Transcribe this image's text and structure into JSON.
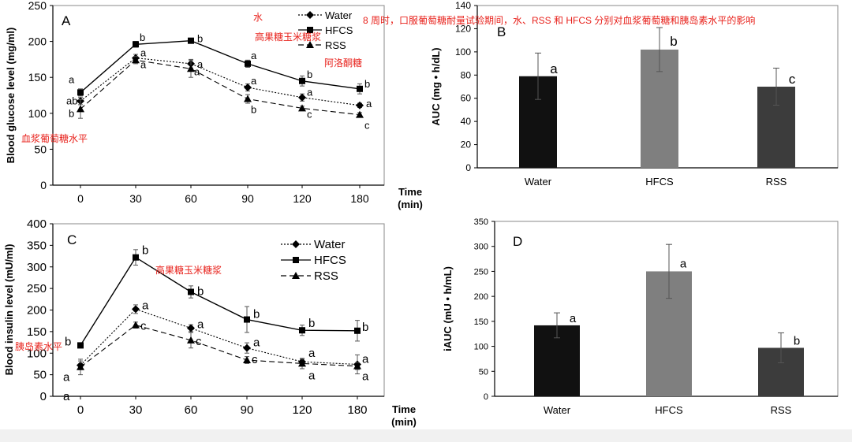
{
  "annotations": {
    "caption": "8 周时，口服葡萄糖耐量试验期间，水、RSS 和 HFCS 分别对血浆葡萄糖和胰岛素水平的影响",
    "water_cn": "水",
    "hfcs_cn_a": "高果糖玉米糖浆",
    "rss_cn": "阿洛酮糖",
    "glucose_cn": "血浆葡萄糖水平",
    "hfcs_cn_c": "高果糖玉米糖浆",
    "insulin_cn": "胰岛素水平"
  },
  "colors": {
    "water": "#111111",
    "hfcs": "#7f7f7f",
    "rss": "#3c3c3c",
    "annotation": "#e8221c",
    "axis": "#000000"
  },
  "chart_data": [
    {
      "panel": "A",
      "type": "line",
      "x": [
        0,
        30,
        60,
        90,
        120,
        180
      ],
      "xticklabels": [
        "0",
        "30",
        "60",
        "90",
        "120",
        "180"
      ],
      "xlabel": "Time\n(min)",
      "ylabel": "Blood glucose level (mg/ml)",
      "ylim": [
        0,
        250
      ],
      "yticks": [
        0,
        50,
        100,
        150,
        200,
        250
      ],
      "legend_position": "top-right",
      "series": [
        {
          "name": "Water",
          "marker": "diamond",
          "line": "dotted",
          "values": [
            117,
            177,
            169,
            136,
            122,
            111
          ],
          "err": [
            5,
            5,
            6,
            5,
            5,
            3
          ],
          "letters": [
            "ab",
            "a",
            "a",
            "a",
            "a",
            "a"
          ]
        },
        {
          "name": "HFCS",
          "marker": "square",
          "line": "solid",
          "values": [
            129,
            196,
            201,
            169,
            145,
            134
          ],
          "err": [
            5,
            4,
            3,
            5,
            7,
            7
          ],
          "letters": [
            "a",
            "b",
            "b",
            "a",
            "b",
            "b"
          ]
        },
        {
          "name": "RSS",
          "marker": "triangle",
          "line": "dashed",
          "values": [
            106,
            174,
            162,
            120,
            107,
            98
          ],
          "err": [
            13,
            5,
            12,
            6,
            3,
            3
          ],
          "letters": [
            "b",
            "a",
            "a",
            "b",
            "c",
            "c"
          ]
        }
      ]
    },
    {
      "panel": "B",
      "type": "bar",
      "categories": [
        "Water",
        "HFCS",
        "RSS"
      ],
      "values": [
        79,
        102,
        70
      ],
      "err": [
        20,
        19,
        16
      ],
      "letters": [
        "a",
        "b",
        "c"
      ],
      "ylabel": "AUC (mg • h/dL)",
      "ylim": [
        0,
        140
      ],
      "yticks": [
        0,
        20,
        40,
        60,
        80,
        100,
        120,
        140
      ]
    },
    {
      "panel": "C",
      "type": "line",
      "x": [
        0,
        30,
        60,
        90,
        120,
        180
      ],
      "xticklabels": [
        "0",
        "30",
        "60",
        "90",
        "120",
        "180"
      ],
      "xlabel": "Time\n(min)",
      "ylabel": "Blood insulin level (mU/ml)",
      "ylim": [
        0,
        400
      ],
      "yticks": [
        0,
        50,
        100,
        150,
        200,
        250,
        300,
        350,
        400
      ],
      "legend_position": "top-right",
      "series": [
        {
          "name": "Water",
          "marker": "diamond",
          "line": "dotted",
          "values": [
            72,
            202,
            158,
            112,
            80,
            74
          ],
          "err": [
            10,
            10,
            8,
            12,
            6,
            22
          ],
          "letters": [
            "a",
            "a",
            "a",
            "a",
            "a",
            "a"
          ]
        },
        {
          "name": "HFCS",
          "marker": "square",
          "line": "solid",
          "values": [
            118,
            322,
            242,
            178,
            153,
            152
          ],
          "err": [
            5,
            18,
            14,
            30,
            12,
            24
          ],
          "letters": [
            "b",
            "b",
            "b",
            "b",
            "b",
            "b"
          ]
        },
        {
          "name": "RSS",
          "marker": "triangle",
          "line": "dashed",
          "values": [
            68,
            165,
            130,
            84,
            76,
            70
          ],
          "err": [
            18,
            7,
            18,
            8,
            12,
            8
          ],
          "letters": [
            "a",
            "c",
            "c",
            "c",
            "a",
            "a"
          ]
        }
      ]
    },
    {
      "panel": "D",
      "type": "bar",
      "categories": [
        "Water",
        "HFCS",
        "RSS"
      ],
      "values": [
        142,
        250,
        97
      ],
      "err": [
        25,
        54,
        30
      ],
      "letters": [
        "a",
        "a",
        "b"
      ],
      "ylabel": "iAUC (mU • h/mL)",
      "ylim": [
        0,
        350
      ],
      "yticks": [
        0,
        50,
        100,
        150,
        200,
        250,
        300,
        350
      ]
    }
  ]
}
